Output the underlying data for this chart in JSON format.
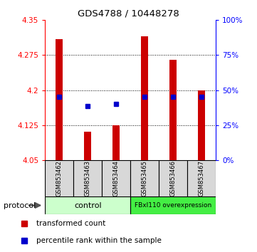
{
  "title": "GDS4788 / 10448278",
  "samples": [
    "GSM853462",
    "GSM853463",
    "GSM853464",
    "GSM853465",
    "GSM853466",
    "GSM853467"
  ],
  "bar_bottom": 4.05,
  "bar_top": [
    4.31,
    4.11,
    4.125,
    4.315,
    4.265,
    4.2
  ],
  "blue_y": [
    4.185,
    4.165,
    4.17,
    4.185,
    4.185,
    4.185
  ],
  "ylim": [
    4.05,
    4.35
  ],
  "yticks_left": [
    4.05,
    4.125,
    4.2,
    4.275,
    4.35
  ],
  "yticks_right_vals": [
    0,
    25,
    50,
    75,
    100
  ],
  "bar_color": "#cc0000",
  "blue_color": "#0000cc",
  "control_label": "control",
  "overexpression_label": "FBxl110 overexpression",
  "control_bg": "#ccffcc",
  "overexpression_bg": "#44ee44",
  "protocol_label": "protocol",
  "legend_red_label": "transformed count",
  "legend_blue_label": "percentile rank within the sample",
  "background_color": "#ffffff"
}
